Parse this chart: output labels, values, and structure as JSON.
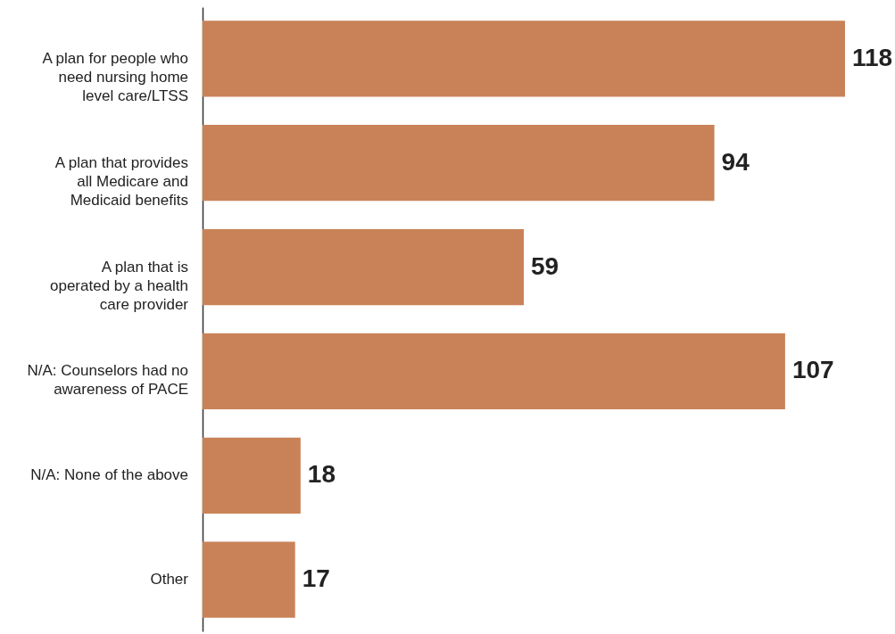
{
  "chart_data": {
    "type": "bar",
    "orientation": "horizontal",
    "categories": [
      "A plan for people who need nursing home level care/LTSS",
      "A plan that provides all Medicare and Medicaid benefits",
      "A plan that is operated by a health care provider",
      "N/A: Counselors had no awareness of PACE",
      "N/A: None of the above",
      "Other"
    ],
    "values": [
      118,
      94,
      59,
      107,
      18,
      17
    ],
    "color": "#c98257",
    "data_labels": true
  }
}
